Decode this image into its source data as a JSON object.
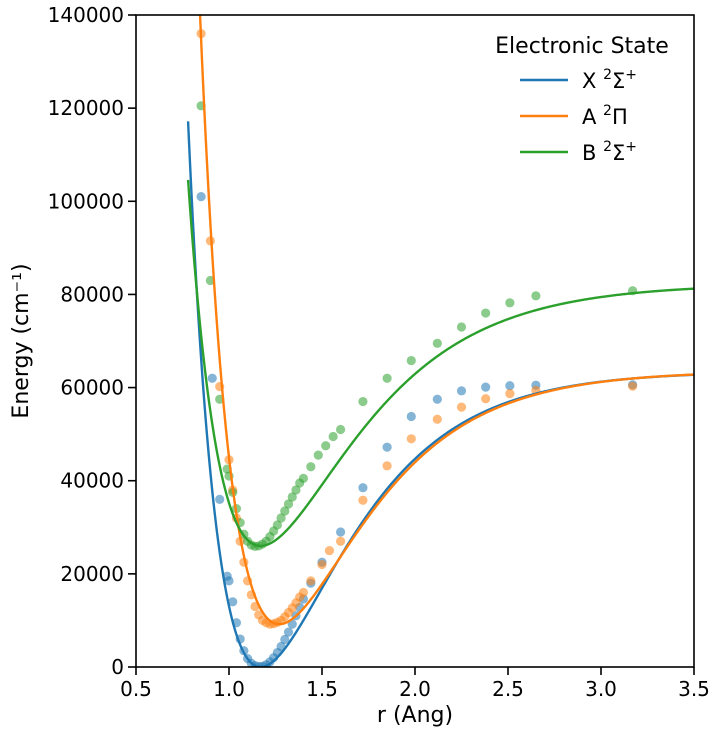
{
  "chart_data": {
    "type": "scatter",
    "title": "",
    "xlabel": "r (Ang)",
    "ylabel": "Energy (cm⁻¹)",
    "xlim": [
      0.5,
      3.5
    ],
    "ylim": [
      0,
      140000
    ],
    "xticks": [
      "0.5",
      "1.0",
      "1.5",
      "2.0",
      "2.5",
      "3.0",
      "3.5"
    ],
    "yticks": [
      "0",
      "20000",
      "40000",
      "60000",
      "80000",
      "100000",
      "120000",
      "140000"
    ],
    "grid": false,
    "legend": {
      "title": "Electronic State",
      "placement": "top-right"
    },
    "series": [
      {
        "name": "X ²Σ⁺",
        "label_main": "X ",
        "label_sup": "2",
        "label_sym": "Σ",
        "label_sup2": "+",
        "color": "#1f77b4",
        "fit": {
          "De": 63500,
          "a": 2.2,
          "re": 1.17,
          "Te": 0
        },
        "points": [
          [
            0.85,
            101000
          ],
          [
            0.91,
            62000
          ],
          [
            0.95,
            36000
          ],
          [
            0.99,
            19500
          ],
          [
            1.0,
            18500
          ],
          [
            1.02,
            14000
          ],
          [
            1.04,
            9500
          ],
          [
            1.06,
            6000
          ],
          [
            1.08,
            3500
          ],
          [
            1.1,
            1800
          ],
          [
            1.12,
            800
          ],
          [
            1.14,
            300
          ],
          [
            1.16,
            100
          ],
          [
            1.18,
            150
          ],
          [
            1.2,
            500
          ],
          [
            1.22,
            1100
          ],
          [
            1.24,
            2000
          ],
          [
            1.26,
            3100
          ],
          [
            1.28,
            4400
          ],
          [
            1.3,
            5900
          ],
          [
            1.32,
            7500
          ],
          [
            1.34,
            9200
          ],
          [
            1.36,
            11000
          ],
          [
            1.38,
            12800
          ],
          [
            1.4,
            14600
          ],
          [
            1.44,
            18000
          ],
          [
            1.5,
            22500
          ],
          [
            1.6,
            29000
          ],
          [
            1.72,
            38500
          ],
          [
            1.85,
            47200
          ],
          [
            1.98,
            53800
          ],
          [
            2.12,
            57500
          ],
          [
            2.25,
            59300
          ],
          [
            2.38,
            60100
          ],
          [
            2.51,
            60400
          ],
          [
            2.65,
            60500
          ],
          [
            3.17,
            60600
          ]
        ]
      },
      {
        "name": "A ²Π",
        "label_main": "A ",
        "label_sup": "2",
        "label_sym": "Π",
        "label_sup2": "",
        "color": "#ff7f0e",
        "fit": {
          "De": 54400,
          "a": 2.2,
          "re": 1.27,
          "Te": 9200
        },
        "points": [
          [
            0.85,
            136000
          ],
          [
            0.9,
            91500
          ],
          [
            0.95,
            60200
          ],
          [
            1.0,
            44500
          ],
          [
            1.02,
            38000
          ],
          [
            1.04,
            32000
          ],
          [
            1.06,
            27000
          ],
          [
            1.08,
            22500
          ],
          [
            1.1,
            18500
          ],
          [
            1.12,
            15500
          ],
          [
            1.14,
            13000
          ],
          [
            1.16,
            11200
          ],
          [
            1.18,
            10000
          ],
          [
            1.2,
            9500
          ],
          [
            1.22,
            9200
          ],
          [
            1.24,
            9300
          ],
          [
            1.26,
            9600
          ],
          [
            1.28,
            10000
          ],
          [
            1.3,
            10800
          ],
          [
            1.32,
            11700
          ],
          [
            1.34,
            12700
          ],
          [
            1.36,
            13800
          ],
          [
            1.38,
            15000
          ],
          [
            1.4,
            16000
          ],
          [
            1.44,
            18500
          ],
          [
            1.5,
            22000
          ],
          [
            1.54,
            25000
          ],
          [
            1.6,
            27000
          ],
          [
            1.72,
            35800
          ],
          [
            1.85,
            43200
          ],
          [
            1.98,
            49000
          ],
          [
            2.12,
            53200
          ],
          [
            2.25,
            55800
          ],
          [
            2.38,
            57600
          ],
          [
            2.51,
            58700
          ],
          [
            2.65,
            59400
          ],
          [
            3.17,
            60300
          ]
        ]
      },
      {
        "name": "B ²Σ⁺",
        "label_main": "B ",
        "label_sup": "2",
        "label_sym": "Σ",
        "label_sup2": "+",
        "color": "#2ca02c",
        "fit": {
          "De": 56300,
          "a": 2.0,
          "re": 1.17,
          "Te": 26000
        },
        "points": [
          [
            0.85,
            120500
          ],
          [
            0.9,
            83000
          ],
          [
            0.95,
            57500
          ],
          [
            0.99,
            42500
          ],
          [
            1.0,
            41000
          ],
          [
            1.02,
            37500
          ],
          [
            1.04,
            34000
          ],
          [
            1.06,
            31000
          ],
          [
            1.08,
            28500
          ],
          [
            1.1,
            27000
          ],
          [
            1.12,
            26200
          ],
          [
            1.14,
            25900
          ],
          [
            1.16,
            26000
          ],
          [
            1.18,
            26400
          ],
          [
            1.2,
            27000
          ],
          [
            1.22,
            28000
          ],
          [
            1.24,
            29200
          ],
          [
            1.26,
            30500
          ],
          [
            1.28,
            32000
          ],
          [
            1.3,
            33500
          ],
          [
            1.32,
            35000
          ],
          [
            1.34,
            36500
          ],
          [
            1.36,
            38000
          ],
          [
            1.38,
            39500
          ],
          [
            1.4,
            40500
          ],
          [
            1.44,
            43000
          ],
          [
            1.48,
            45500
          ],
          [
            1.52,
            47500
          ],
          [
            1.56,
            49500
          ],
          [
            1.6,
            51000
          ],
          [
            1.72,
            57000
          ],
          [
            1.85,
            62000
          ],
          [
            1.98,
            65800
          ],
          [
            2.12,
            69500
          ],
          [
            2.25,
            73000
          ],
          [
            2.38,
            76000
          ],
          [
            2.51,
            78200
          ],
          [
            2.65,
            79700
          ],
          [
            3.17,
            80800
          ]
        ]
      }
    ]
  }
}
